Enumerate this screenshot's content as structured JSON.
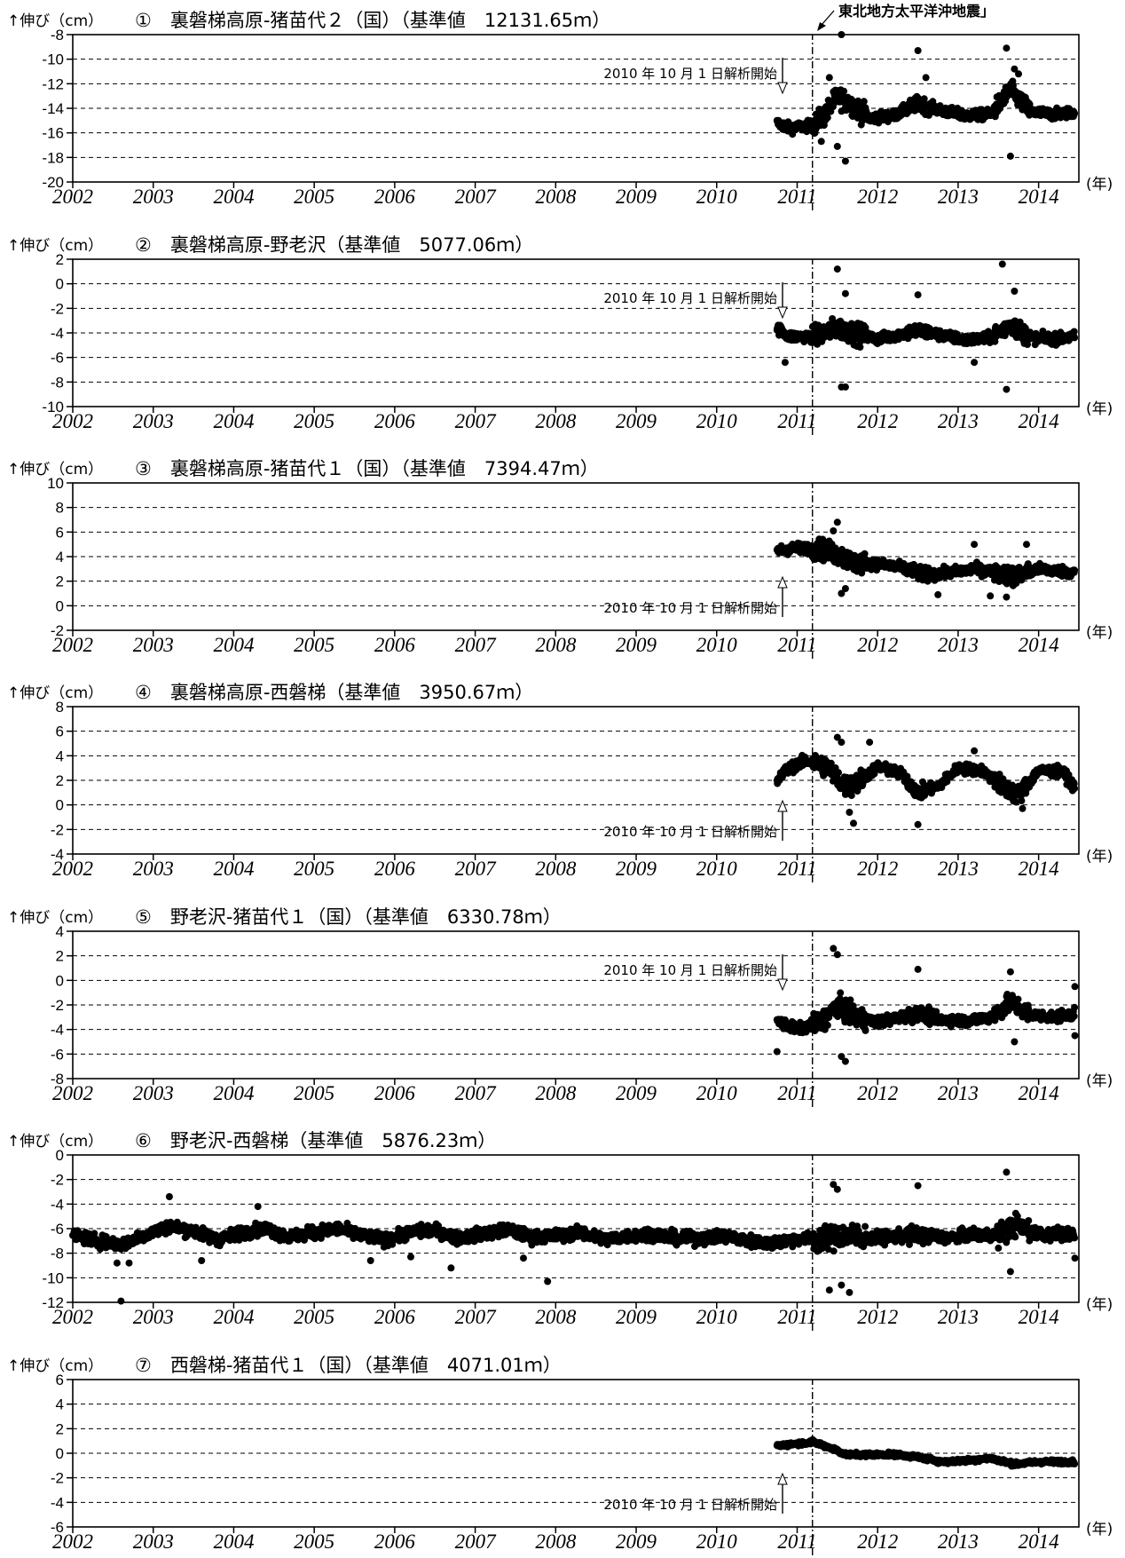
{
  "quake_label": "東北地方太平洋沖地震」",
  "chart_data": [
    {
      "type": "scatter",
      "id": 1,
      "y_label": "↑伸び（cm）",
      "title": "①　裏磐梯高原-猪苗代２（国）（基準値　12131.65ｍ）",
      "x_unit": "(年)",
      "xlim": [
        2002,
        2014.5
      ],
      "ylim": [
        -20,
        -8
      ],
      "yticks": [
        -8,
        -10,
        -12,
        -14,
        -16,
        -18,
        -20
      ],
      "xticks": [
        2002,
        2003,
        2004,
        2005,
        2006,
        2007,
        2008,
        2009,
        2010,
        2011,
        2012,
        2013,
        2014
      ],
      "annotation": {
        "text": "2010 年 10 月 1 日解析開始",
        "arrow": "down"
      },
      "trend": [
        [
          2010.75,
          -15.2
        ],
        [
          2010.9,
          -15.6
        ],
        [
          2011.2,
          -15.4
        ],
        [
          2011.35,
          -14.5
        ],
        [
          2011.5,
          -13.0
        ],
        [
          2011.7,
          -13.8
        ],
        [
          2011.9,
          -14.8
        ],
        [
          2012.2,
          -14.6
        ],
        [
          2012.5,
          -13.6
        ],
        [
          2012.8,
          -14.2
        ],
        [
          2013.1,
          -14.6
        ],
        [
          2013.4,
          -14.5
        ],
        [
          2013.65,
          -12.5
        ],
        [
          2013.9,
          -14.3
        ],
        [
          2014.2,
          -14.5
        ],
        [
          2014.45,
          -14.3
        ]
      ],
      "outliers": [
        [
          2011.55,
          -8.0
        ],
        [
          2011.6,
          -18.3
        ],
        [
          2011.5,
          -17.1
        ],
        [
          2012.5,
          -9.3
        ],
        [
          2013.6,
          -9.1
        ],
        [
          2013.65,
          -17.9
        ],
        [
          2013.7,
          -10.8
        ],
        [
          2013.75,
          -11.2
        ],
        [
          2011.4,
          -11.5
        ],
        [
          2012.6,
          -11.5
        ],
        [
          2011.3,
          -16.7
        ]
      ]
    },
    {
      "type": "scatter",
      "id": 2,
      "y_label": "↑伸び（cm）",
      "title": "②　裏磐梯高原-野老沢（基準値　5077.06ｍ）",
      "x_unit": "(年)",
      "xlim": [
        2002,
        2014.5
      ],
      "ylim": [
        -10,
        2
      ],
      "yticks": [
        2,
        0,
        -2,
        -4,
        -6,
        -8,
        -10
      ],
      "xticks": [
        2002,
        2003,
        2004,
        2005,
        2006,
        2007,
        2008,
        2009,
        2010,
        2011,
        2012,
        2013,
        2014
      ],
      "annotation": {
        "text": "2010 年 10 月 1 日解析開始",
        "arrow": "down"
      },
      "trend": [
        [
          2010.75,
          -3.6
        ],
        [
          2010.9,
          -4.3
        ],
        [
          2011.2,
          -4.3
        ],
        [
          2011.5,
          -3.6
        ],
        [
          2011.7,
          -4.0
        ],
        [
          2012.0,
          -4.5
        ],
        [
          2012.5,
          -3.8
        ],
        [
          2012.8,
          -4.2
        ],
        [
          2013.1,
          -4.6
        ],
        [
          2013.4,
          -4.4
        ],
        [
          2013.65,
          -3.3
        ],
        [
          2013.9,
          -4.4
        ],
        [
          2014.2,
          -4.5
        ],
        [
          2014.45,
          -4.3
        ]
      ],
      "outliers": [
        [
          2011.5,
          1.2
        ],
        [
          2013.55,
          1.6
        ],
        [
          2011.55,
          -8.4
        ],
        [
          2011.6,
          -8.4
        ],
        [
          2013.6,
          -8.6
        ],
        [
          2010.85,
          -6.4
        ],
        [
          2011.6,
          -0.8
        ],
        [
          2013.7,
          -0.6
        ],
        [
          2012.5,
          -0.9
        ],
        [
          2013.2,
          -6.4
        ]
      ]
    },
    {
      "type": "scatter",
      "id": 3,
      "y_label": "↑伸び（cm）",
      "title": "③　裏磐梯高原-猪苗代１（国）（基準値　7394.47ｍ）",
      "x_unit": "(年)",
      "xlim": [
        2002,
        2014.5
      ],
      "ylim": [
        -2,
        10
      ],
      "yticks": [
        10,
        8,
        6,
        4,
        2,
        0,
        -2
      ],
      "xticks": [
        2002,
        2003,
        2004,
        2005,
        2006,
        2007,
        2008,
        2009,
        2010,
        2011,
        2012,
        2013,
        2014
      ],
      "annotation": {
        "text": "2010 年 10 月 1 日解析開始",
        "arrow": "up"
      },
      "trend": [
        [
          2010.75,
          4.5
        ],
        [
          2011.0,
          4.7
        ],
        [
          2011.3,
          4.6
        ],
        [
          2011.5,
          4.2
        ],
        [
          2011.7,
          3.5
        ],
        [
          2012.0,
          3.4
        ],
        [
          2012.3,
          3.1
        ],
        [
          2012.6,
          2.5
        ],
        [
          2012.9,
          2.7
        ],
        [
          2013.2,
          3.0
        ],
        [
          2013.5,
          2.7
        ],
        [
          2013.7,
          2.4
        ],
        [
          2014.0,
          3.0
        ],
        [
          2014.45,
          2.7
        ]
      ],
      "outliers": [
        [
          2011.5,
          6.8
        ],
        [
          2011.45,
          6.1
        ],
        [
          2011.55,
          1.0
        ],
        [
          2011.6,
          1.4
        ],
        [
          2012.75,
          0.9
        ],
        [
          2013.4,
          0.8
        ],
        [
          2013.6,
          0.7
        ],
        [
          2013.2,
          5.0
        ],
        [
          2013.85,
          5.0
        ]
      ]
    },
    {
      "type": "scatter",
      "id": 4,
      "y_label": "↑伸び（cm）",
      "title": "④　裏磐梯高原-西磐梯（基準値　3950.67ｍ）",
      "x_unit": "(年)",
      "xlim": [
        2002,
        2014.5
      ],
      "ylim": [
        -4,
        8
      ],
      "yticks": [
        8,
        6,
        4,
        2,
        0,
        -2,
        -4
      ],
      "xticks": [
        2002,
        2003,
        2004,
        2005,
        2006,
        2007,
        2008,
        2009,
        2010,
        2011,
        2012,
        2013,
        2014
      ],
      "annotation": {
        "text": "2010 年 10 月 1 日解析開始",
        "arrow": "up"
      },
      "trend": [
        [
          2010.75,
          1.8
        ],
        [
          2010.85,
          2.8
        ],
        [
          2011.1,
          3.6
        ],
        [
          2011.35,
          3.2
        ],
        [
          2011.6,
          1.5
        ],
        [
          2011.75,
          1.8
        ],
        [
          2012.0,
          3.1
        ],
        [
          2012.3,
          2.5
        ],
        [
          2012.5,
          1.0
        ],
        [
          2012.75,
          1.5
        ],
        [
          2013.0,
          3.0
        ],
        [
          2013.3,
          2.8
        ],
        [
          2013.55,
          1.5
        ],
        [
          2013.75,
          0.8
        ],
        [
          2014.0,
          2.8
        ],
        [
          2014.3,
          2.7
        ],
        [
          2014.45,
          1.4
        ]
      ],
      "outliers": [
        [
          2011.5,
          5.5
        ],
        [
          2011.55,
          5.1
        ],
        [
          2011.7,
          -1.5
        ],
        [
          2011.65,
          -0.6
        ],
        [
          2012.5,
          -1.6
        ],
        [
          2013.2,
          4.4
        ],
        [
          2011.9,
          5.1
        ],
        [
          2013.8,
          -0.3
        ]
      ]
    },
    {
      "type": "scatter",
      "id": 5,
      "y_label": "↑伸び（cm）",
      "title": "⑤　野老沢-猪苗代１（国）（基準値　6330.78ｍ）",
      "x_unit": "(年)",
      "xlim": [
        2002,
        2014.5
      ],
      "ylim": [
        -8,
        4
      ],
      "yticks": [
        4,
        2,
        0,
        -2,
        -4,
        -6,
        -8
      ],
      "xticks": [
        2002,
        2003,
        2004,
        2005,
        2006,
        2007,
        2008,
        2009,
        2010,
        2011,
        2012,
        2013,
        2014
      ],
      "annotation": {
        "text": "2010 年 10 月 1 日解析開始",
        "arrow": "down"
      },
      "trend": [
        [
          2010.75,
          -3.3
        ],
        [
          2011.0,
          -4.0
        ],
        [
          2011.3,
          -3.4
        ],
        [
          2011.5,
          -2.0
        ],
        [
          2011.7,
          -3.0
        ],
        [
          2012.0,
          -3.4
        ],
        [
          2012.5,
          -2.7
        ],
        [
          2012.8,
          -3.2
        ],
        [
          2013.1,
          -3.3
        ],
        [
          2013.4,
          -3.0
        ],
        [
          2013.65,
          -1.8
        ],
        [
          2013.9,
          -2.8
        ],
        [
          2014.2,
          -3.0
        ],
        [
          2014.45,
          -2.7
        ]
      ],
      "outliers": [
        [
          2011.45,
          2.6
        ],
        [
          2011.5,
          2.1
        ],
        [
          2010.75,
          -5.8
        ],
        [
          2011.55,
          -6.2
        ],
        [
          2011.6,
          -6.6
        ],
        [
          2012.5,
          0.9
        ],
        [
          2013.65,
          0.7
        ],
        [
          2013.7,
          -5.0
        ],
        [
          2014.45,
          -0.5
        ],
        [
          2014.45,
          -4.5
        ]
      ]
    },
    {
      "type": "scatter",
      "id": 6,
      "y_label": "↑伸び（cm）",
      "title": "⑥　野老沢-西磐梯（基準値　5876.23ｍ）",
      "x_unit": "(年)",
      "xlim": [
        2002,
        2014.5
      ],
      "ylim": [
        -12,
        0
      ],
      "yticks": [
        0,
        -2,
        -4,
        -6,
        -8,
        -10,
        -12
      ],
      "xticks": [
        2002,
        2003,
        2004,
        2005,
        2006,
        2007,
        2008,
        2009,
        2010,
        2011,
        2012,
        2013,
        2014
      ],
      "annotation": null,
      "trend": [
        [
          2002.0,
          -6.5
        ],
        [
          2002.3,
          -7.0
        ],
        [
          2002.6,
          -7.3
        ],
        [
          2002.9,
          -6.5
        ],
        [
          2003.2,
          -5.8
        ],
        [
          2003.5,
          -6.2
        ],
        [
          2003.8,
          -6.9
        ],
        [
          2004.1,
          -6.3
        ],
        [
          2004.4,
          -6.0
        ],
        [
          2004.7,
          -6.7
        ],
        [
          2005.0,
          -6.3
        ],
        [
          2005.3,
          -6.0
        ],
        [
          2005.6,
          -6.6
        ],
        [
          2005.9,
          -6.9
        ],
        [
          2006.2,
          -6.3
        ],
        [
          2006.5,
          -6.1
        ],
        [
          2006.8,
          -6.8
        ],
        [
          2007.1,
          -6.4
        ],
        [
          2007.4,
          -6.1
        ],
        [
          2007.7,
          -6.7
        ],
        [
          2008.0,
          -6.6
        ],
        [
          2008.3,
          -6.3
        ],
        [
          2008.6,
          -6.9
        ],
        [
          2008.9,
          -6.6
        ],
        [
          2009.2,
          -6.4
        ],
        [
          2009.5,
          -6.8
        ],
        [
          2009.8,
          -6.8
        ],
        [
          2010.1,
          -6.6
        ],
        [
          2010.4,
          -7.0
        ],
        [
          2010.7,
          -7.2
        ],
        [
          2011.0,
          -6.8
        ],
        [
          2011.3,
          -6.9
        ],
        [
          2011.6,
          -6.5
        ],
        [
          2011.9,
          -6.8
        ],
        [
          2012.3,
          -6.6
        ],
        [
          2012.6,
          -6.5
        ],
        [
          2012.9,
          -6.8
        ],
        [
          2013.2,
          -6.4
        ],
        [
          2013.5,
          -6.6
        ],
        [
          2013.7,
          -5.7
        ],
        [
          2014.0,
          -6.4
        ],
        [
          2014.45,
          -6.5
        ]
      ],
      "outliers": [
        [
          2002.6,
          -11.9
        ],
        [
          2003.2,
          -3.4
        ],
        [
          2004.3,
          -4.2
        ],
        [
          2002.55,
          -8.8
        ],
        [
          2002.7,
          -8.8
        ],
        [
          2003.6,
          -8.6
        ],
        [
          2005.7,
          -8.6
        ],
        [
          2006.2,
          -8.3
        ],
        [
          2006.7,
          -9.2
        ],
        [
          2007.6,
          -8.4
        ],
        [
          2007.9,
          -10.3
        ],
        [
          2011.45,
          -2.4
        ],
        [
          2011.5,
          -2.8
        ],
        [
          2011.4,
          -11.0
        ],
        [
          2011.55,
          -10.6
        ],
        [
          2011.65,
          -11.2
        ],
        [
          2012.5,
          -2.5
        ],
        [
          2013.6,
          -1.4
        ],
        [
          2013.65,
          -9.5
        ],
        [
          2014.45,
          -8.4
        ]
      ]
    },
    {
      "type": "scatter",
      "id": 7,
      "y_label": "↑伸び（cm）",
      "title": "⑦　西磐梯-猪苗代１（国）（基準値　4071.01ｍ）",
      "x_unit": "(年)",
      "xlim": [
        2002,
        2014.5
      ],
      "ylim": [
        -6,
        6
      ],
      "yticks": [
        6,
        4,
        2,
        0,
        -2,
        -4,
        -6
      ],
      "xticks": [
        2002,
        2003,
        2004,
        2005,
        2006,
        2007,
        2008,
        2009,
        2010,
        2011,
        2012,
        2013,
        2014
      ],
      "annotation": {
        "text": "2010 年 10 月 1 日解析開始",
        "arrow": "up"
      },
      "trend": [
        [
          2010.75,
          0.6
        ],
        [
          2011.0,
          0.8
        ],
        [
          2011.2,
          0.9
        ],
        [
          2011.4,
          0.5
        ],
        [
          2011.6,
          -0.1
        ],
        [
          2011.9,
          -0.1
        ],
        [
          2012.2,
          -0.1
        ],
        [
          2012.5,
          -0.3
        ],
        [
          2012.8,
          -0.7
        ],
        [
          2013.1,
          -0.6
        ],
        [
          2013.4,
          -0.4
        ],
        [
          2013.7,
          -0.9
        ],
        [
          2014.0,
          -0.7
        ],
        [
          2014.45,
          -0.7
        ]
      ],
      "outliers": []
    }
  ]
}
